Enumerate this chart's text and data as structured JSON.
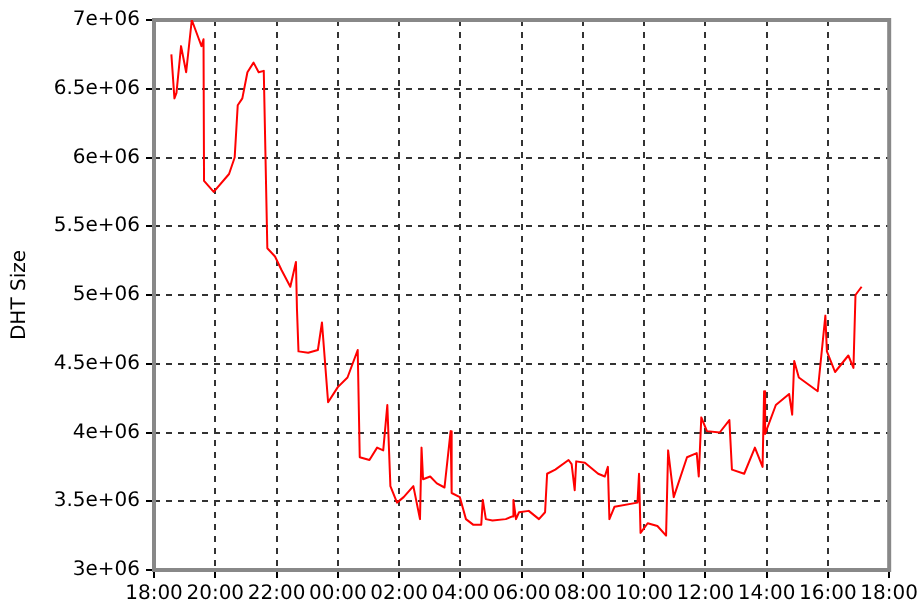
{
  "chart_data": {
    "type": "line",
    "ylabel": "DHT Size",
    "grid": true,
    "legend": false,
    "marker": "none",
    "line_style": "solid",
    "xlim": [
      "2000-01-01T18:00",
      "2000-01-02T18:00"
    ],
    "xticks": [
      {
        "value": "2000-01-01T18:00",
        "label": "18:00"
      },
      {
        "value": "2000-01-01T20:00",
        "label": "20:00"
      },
      {
        "value": "2000-01-01T22:00",
        "label": "22:00"
      },
      {
        "value": "2000-01-02T00:00",
        "label": "00:00"
      },
      {
        "value": "2000-01-02T02:00",
        "label": "02:00"
      },
      {
        "value": "2000-01-02T04:00",
        "label": "04:00"
      },
      {
        "value": "2000-01-02T06:00",
        "label": "06:00"
      },
      {
        "value": "2000-01-02T08:00",
        "label": "08:00"
      },
      {
        "value": "2000-01-02T10:00",
        "label": "10:00"
      },
      {
        "value": "2000-01-02T12:00",
        "label": "12:00"
      },
      {
        "value": "2000-01-02T14:00",
        "label": "14:00"
      },
      {
        "value": "2000-01-02T16:00",
        "label": "16:00"
      },
      {
        "value": "2000-01-02T18:00",
        "label": "18:00"
      }
    ],
    "ylim": [
      3000000,
      7000000
    ],
    "yticks": [
      {
        "value": 3000000,
        "label": "3e+06"
      },
      {
        "value": 3500000,
        "label": "3.5e+06"
      },
      {
        "value": 4000000,
        "label": "4e+06"
      },
      {
        "value": 4500000,
        "label": "4.5e+06"
      },
      {
        "value": 5000000,
        "label": "5e+06"
      },
      {
        "value": 5500000,
        "label": "5.5e+06"
      },
      {
        "value": 6000000,
        "label": "6e+06"
      },
      {
        "value": 6500000,
        "label": "6.5e+06"
      },
      {
        "value": 7000000,
        "label": "7e+06"
      }
    ],
    "x": [
      "2000-01-01T18:34",
      "2000-01-01T18:40",
      "2000-01-01T18:44",
      "2000-01-01T18:53",
      "2000-01-01T19:03",
      "2000-01-01T19:14",
      "2000-01-01T19:26",
      "2000-01-01T19:33",
      "2000-01-01T19:37",
      "2000-01-01T19:38",
      "2000-01-01T19:57",
      "2000-01-01T20:27",
      "2000-01-01T20:38",
      "2000-01-01T20:44",
      "2000-01-01T20:53",
      "2000-01-01T21:03",
      "2000-01-01T21:15",
      "2000-01-01T21:25",
      "2000-01-01T21:35",
      "2000-01-01T21:42",
      "2000-01-01T21:57",
      "2000-01-01T22:10",
      "2000-01-01T22:27",
      "2000-01-01T22:38",
      "2000-01-01T22:40",
      "2000-01-01T22:43",
      "2000-01-01T23:02",
      "2000-01-01T23:21",
      "2000-01-01T23:29",
      "2000-01-01T23:41",
      "2000-01-02T00:00",
      "2000-01-02T00:19",
      "2000-01-02T00:39",
      "2000-01-02T00:43",
      "2000-01-02T01:02",
      "2000-01-02T01:17",
      "2000-01-02T01:29",
      "2000-01-02T01:37",
      "2000-01-02T01:43",
      "2000-01-02T01:56",
      "2000-01-02T02:09",
      "2000-01-02T02:28",
      "2000-01-02T02:41",
      "2000-01-02T02:44",
      "2000-01-02T02:47",
      "2000-01-02T03:01",
      "2000-01-02T03:14",
      "2000-01-02T03:29",
      "2000-01-02T03:41",
      "2000-01-02T03:43",
      "2000-01-02T03:59",
      "2000-01-02T04:11",
      "2000-01-02T04:25",
      "2000-01-02T04:41",
      "2000-01-02T04:44",
      "2000-01-02T04:50",
      "2000-01-02T05:03",
      "2000-01-02T05:29",
      "2000-01-02T05:42",
      "2000-01-02T05:44",
      "2000-01-02T05:49",
      "2000-01-02T05:55",
      "2000-01-02T06:14",
      "2000-01-02T06:34",
      "2000-01-02T06:46",
      "2000-01-02T06:50",
      "2000-01-02T07:06",
      "2000-01-02T07:32",
      "2000-01-02T07:38",
      "2000-01-02T07:44",
      "2000-01-02T07:47",
      "2000-01-02T08:04",
      "2000-01-02T08:30",
      "2000-01-02T08:43",
      "2000-01-02T08:49",
      "2000-01-02T08:52",
      "2000-01-02T09:02",
      "2000-01-02T09:47",
      "2000-01-02T09:50",
      "2000-01-02T09:53",
      "2000-01-02T10:07",
      "2000-01-02T10:26",
      "2000-01-02T10:43",
      "2000-01-02T10:47",
      "2000-01-02T10:58",
      "2000-01-02T11:24",
      "2000-01-02T11:43",
      "2000-01-02T11:47",
      "2000-01-02T11:52",
      "2000-01-02T12:03",
      "2000-01-02T12:28",
      "2000-01-02T12:47",
      "2000-01-02T12:52",
      "2000-01-02T13:16",
      "2000-01-02T13:37",
      "2000-01-02T13:52",
      "2000-01-02T13:55",
      "2000-01-02T13:57",
      "2000-01-02T14:18",
      "2000-01-02T14:44",
      "2000-01-02T14:50",
      "2000-01-02T14:54",
      "2000-01-02T15:03",
      "2000-01-02T15:40",
      "2000-01-02T15:55",
      "2000-01-02T15:58",
      "2000-01-02T16:14",
      "2000-01-02T16:40",
      "2000-01-02T16:50",
      "2000-01-02T16:54",
      "2000-01-02T17:06"
    ],
    "series": [
      {
        "color": "#ff0000",
        "values": [
          6750000,
          6430000,
          6470000,
          6810000,
          6620000,
          7000000,
          6880000,
          6810000,
          6860000,
          5830000,
          5750000,
          5880000,
          6000000,
          6380000,
          6430000,
          6620000,
          6690000,
          6620000,
          6630000,
          5340000,
          5280000,
          5180000,
          5060000,
          5240000,
          4900000,
          4590000,
          4580000,
          4600000,
          4800000,
          4220000,
          4330000,
          4400000,
          4600000,
          3820000,
          3800000,
          3890000,
          3870000,
          4200000,
          3610000,
          3490000,
          3530000,
          3610000,
          3370000,
          3890000,
          3660000,
          3680000,
          3630000,
          3600000,
          4010000,
          3560000,
          3530000,
          3370000,
          3330000,
          3330000,
          3510000,
          3370000,
          3360000,
          3370000,
          3390000,
          3510000,
          3370000,
          3420000,
          3430000,
          3370000,
          3420000,
          3700000,
          3730000,
          3800000,
          3770000,
          3580000,
          3790000,
          3780000,
          3700000,
          3680000,
          3750000,
          3370000,
          3460000,
          3490000,
          3700000,
          3270000,
          3340000,
          3320000,
          3250000,
          3870000,
          3530000,
          3820000,
          3850000,
          3680000,
          4110000,
          4010000,
          4000000,
          4090000,
          3730000,
          3700000,
          3890000,
          3750000,
          4300000,
          3990000,
          4200000,
          4280000,
          4130000,
          4520000,
          4400000,
          4300000,
          4850000,
          4590000,
          4440000,
          4560000,
          4470000,
          5000000,
          5060000
        ]
      }
    ]
  }
}
